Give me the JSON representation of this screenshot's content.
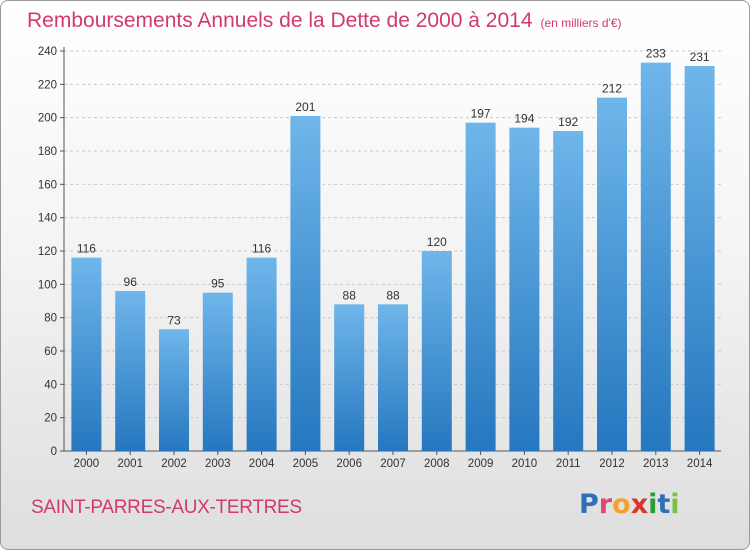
{
  "title": "Remboursements Annuels de la Dette de 2000 à 2014",
  "unit": "(en milliers d'€)",
  "commune": "SAINT-PARRES-AUX-TERTRES",
  "logo": {
    "letters": [
      {
        "ch": "P",
        "color": "#2f6fb5"
      },
      {
        "ch": "r",
        "color": "#e0457b"
      },
      {
        "ch": "o",
        "color": "#f2a02a"
      },
      {
        "ch": "x",
        "color": "#d9352b"
      },
      {
        "ch": "i",
        "color": "#2e9a3c"
      },
      {
        "ch": "t",
        "color": "#2f6fb5"
      },
      {
        "ch": "i",
        "color": "#7cc242"
      }
    ]
  },
  "colors": {
    "bar_light": "#6fb6ea",
    "bar_dark": "#2577bf",
    "text": "#d23a6a"
  },
  "chart_data": {
    "type": "bar",
    "categories": [
      "2000",
      "2001",
      "2002",
      "2003",
      "2004",
      "2005",
      "2006",
      "2007",
      "2008",
      "2009",
      "2010",
      "2011",
      "2012",
      "2013",
      "2014"
    ],
    "values": [
      116,
      96,
      73,
      95,
      116,
      201,
      88,
      88,
      120,
      197,
      194,
      192,
      212,
      233,
      231
    ],
    "ylim": [
      0,
      240
    ],
    "yticks": [
      0,
      20,
      40,
      60,
      80,
      100,
      120,
      140,
      160,
      180,
      200,
      220,
      240
    ],
    "grid": true
  }
}
